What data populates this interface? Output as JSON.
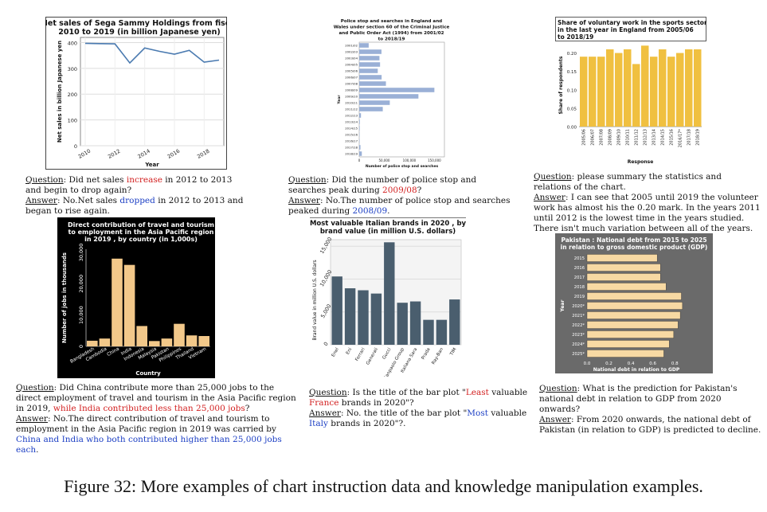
{
  "charts": [
    {
      "type": "line",
      "title": "Net sales of Sega Sammy Holdings from fiscal 2010 to 2019 (in billion Japanese yen)",
      "title_lines": [
        "Net sales of Sega Sammy Holdings from fiscal",
        "2010 to 2019 (in billion Japanese yen)"
      ],
      "xlabel": "Year",
      "ylabel": "Net sales in billion Japanese yen",
      "x": [
        2010,
        2011,
        2012,
        2013,
        2014,
        2015,
        2016,
        2017,
        2018,
        2019
      ],
      "values": [
        397,
        396,
        395,
        321,
        379,
        366,
        355,
        370,
        324,
        332
      ],
      "xticks": [
        "2010",
        "2012",
        "2014",
        "2016",
        "2018"
      ],
      "yticks": [
        "0",
        "100",
        "200",
        "300",
        "400"
      ],
      "ylim": [
        0,
        420
      ],
      "grid": true,
      "line_color": "#4a7ab0"
    },
    {
      "type": "bar",
      "orientation": "horizontal",
      "title": "Police stop and searches in England and Wales under section 60 of the Criminal Justice and Public Order Act (1994) from 2001/02 to 2018/19",
      "title_lines": [
        "Police stop and searches in England and",
        "Wales under section 60 of the Criminal Justice",
        "and Public Order Act (1994) from 2001/02",
        "to 2018/19"
      ],
      "xlabel": "Number of police stop and searches",
      "ylabel": "Year",
      "categories": [
        "2001/02",
        "2002/03",
        "2003/04",
        "2004/05",
        "2005/06",
        "2006/07",
        "2007/08",
        "2008/09",
        "2009/10",
        "2010/11",
        "2011/12",
        "2012/13",
        "2013/14",
        "2014/15",
        "2015/16",
        "2016/17",
        "2017/18",
        "2018/19"
      ],
      "values": [
        18900,
        44400,
        40400,
        41600,
        37000,
        44700,
        53300,
        149955,
        118112,
        61000,
        47000,
        3500,
        1200,
        1000,
        600,
        700,
        2500,
        5200
      ],
      "xticks": [
        "0",
        "50,000",
        "100,000",
        "150,000"
      ],
      "xlim": [
        0,
        170000
      ],
      "bar_color": "#9ab0d6"
    },
    {
      "type": "bar",
      "title": "Share of voluntary work in the sports sector in the last year in England from 2005/06 to 2018/19",
      "title_lines": [
        "Share of voluntary work in the sports sector",
        "in the last year in England from 2005/06",
        "to 2018/19"
      ],
      "xlabel": "Response",
      "ylabel": "Share of respondents",
      "categories": [
        "2005/06",
        "2006/07",
        "2007/08",
        "2008/09",
        "2009/10",
        "2010/11",
        "2011/12",
        "2012/13",
        "2013/14",
        "2014/15",
        "2015/16",
        "2016/17*",
        "2017/18",
        "2018/19"
      ],
      "values": [
        0.19,
        0.19,
        0.19,
        0.21,
        0.2,
        0.21,
        0.17,
        0.22,
        0.19,
        0.21,
        0.19,
        0.2,
        0.21,
        0.21
      ],
      "yticks": [
        "0.00",
        "0.05",
        "0.10",
        "0.15",
        "0.20"
      ],
      "ylim": [
        0,
        0.225
      ],
      "bar_color": "#f0c040"
    },
    {
      "type": "bar",
      "title": "Direct contribution of travel and tourism to employment in the Asia Pacific region in 2019 , by country (in 1,000s)",
      "title_lines": [
        "Direct contribution of travel and tourism",
        "to employment in the Asia Pacific region",
        "in 2019 , by country (in 1,000s)"
      ],
      "xlabel": "Country",
      "ylabel": "Number of jobs in thousands",
      "categories": [
        "Bangladesh",
        "Cambodia",
        "China",
        "India",
        "Indonesia",
        "Malaysia",
        "Pakistan",
        "Philippines",
        "Thailand",
        "Vietnam"
      ],
      "values": [
        1800,
        2500,
        28000,
        26000,
        6500,
        1700,
        2500,
        7200,
        3500,
        3300
      ],
      "yticks": [
        "0",
        "10,000",
        "20,000",
        "30,000"
      ],
      "ylim": [
        0,
        31000
      ],
      "bar_color": "#f2c88a",
      "background": "#000000"
    },
    {
      "type": "bar",
      "title": "Most valuable Italian brands in 2020 , by brand value (in million U.S. dollars)",
      "title_lines": [
        "Most valuable Italian brands in 2020 , by",
        "brand value (in million U.S. dollars)"
      ],
      "xlabel": "",
      "ylabel": "Brand value in million U.S. dollars",
      "categories": [
        "Enel",
        "Eni",
        "Ferrari",
        "Generali",
        "Gucci",
        "Intesa Sanpaolo Group",
        "Italiana Sara",
        "Prada",
        "Ray-Ban",
        "TIM"
      ],
      "values": [
        10400,
        8600,
        8300,
        7800,
        15600,
        6400,
        6600,
        3800,
        3800,
        6900
      ],
      "yticks": [
        "0",
        "5,000",
        "10,000",
        "15,000"
      ],
      "ylim": [
        0,
        16000
      ],
      "grid": true,
      "bar_color": "#4a5e6e"
    },
    {
      "type": "bar",
      "orientation": "horizontal",
      "title": "Pakistan : National debt from 2015 to 2025 in relation to gross domestic product (GDP)",
      "title_lines": [
        "Pakistan : National debt from 2015 to 2025",
        "in relation to gross domestic product (GDP)"
      ],
      "xlabel": "National debt in relation to GDP",
      "ylabel": "Year",
      "categories": [
        "2015",
        "2016",
        "2017",
        "2018",
        "2019",
        "2020*",
        "2021*",
        "2022*",
        "2023*",
        "2024*",
        "2025*"
      ],
      "values": [
        0.64,
        0.67,
        0.67,
        0.72,
        0.86,
        0.87,
        0.85,
        0.83,
        0.79,
        0.75,
        0.7
      ],
      "xticks": [
        "0.0",
        "0.2",
        "0.4",
        "0.6",
        "0.8"
      ],
      "xlim": [
        0,
        0.9
      ],
      "bar_color": "#f7d9a3",
      "background": "#6a6a6a"
    }
  ],
  "qa": [
    {
      "q_label": "Question",
      "q_parts": [
        {
          "t": ": Did net sales ",
          "c": ""
        },
        {
          "t": "increase",
          "c": "red"
        },
        {
          "t": " in 2012 to 2013 and begin to drop again?",
          "c": ""
        }
      ],
      "a_label": "Answer",
      "a_parts": [
        {
          "t": ": No.Net sales ",
          "c": ""
        },
        {
          "t": "dropped",
          "c": "blue"
        },
        {
          "t": " in 2012 to 2013 and began to rise again.",
          "c": ""
        }
      ]
    },
    {
      "q_label": "Question",
      "q_parts": [
        {
          "t": ": Did the number of police stop and searches peak during ",
          "c": ""
        },
        {
          "t": "2009/08",
          "c": "red"
        },
        {
          "t": "?",
          "c": ""
        }
      ],
      "a_label": "Answer",
      "a_parts": [
        {
          "t": ": No.The number of police stop and searches peaked during ",
          "c": ""
        },
        {
          "t": "2008/09",
          "c": "blue"
        },
        {
          "t": ".",
          "c": ""
        }
      ]
    },
    {
      "q_label": "Question",
      "q_parts": [
        {
          "t": ": please summary the statistics and relations of the chart.",
          "c": ""
        }
      ],
      "a_label": "Answer",
      "a_parts": [
        {
          "t": ": I can see that 2005 until 2019 the volunteer work has almost his the 0.20 mark. In the years 2011 until 2012 is the lowest time in the years studied. There isn't much variation between all of the years.",
          "c": ""
        }
      ]
    },
    {
      "q_label": "Question",
      "q_parts": [
        {
          "t": ": Did China contribute more than 25,000 jobs to the direct employment of travel and tourism in the Asia Pacific region in 2019, ",
          "c": ""
        },
        {
          "t": "while India contributed less than 25,000 jobs",
          "c": "red"
        },
        {
          "t": "?",
          "c": ""
        }
      ],
      "a_label": "Answer",
      "a_parts": [
        {
          "t": ": No.The direct contribution of travel and tourism to employment in the Asia Pacific region in 2019 was carried by ",
          "c": ""
        },
        {
          "t": "China and India who both contributed higher than 25,000 jobs each",
          "c": "blue"
        },
        {
          "t": ".",
          "c": ""
        }
      ]
    },
    {
      "q_label": "Question",
      "q_parts": [
        {
          "t": ": Is the title of the bar plot \"",
          "c": ""
        },
        {
          "t": "Least",
          "c": "red"
        },
        {
          "t": " valuable ",
          "c": ""
        },
        {
          "t": "France",
          "c": "red"
        },
        {
          "t": " brands in 2020\"?",
          "c": ""
        }
      ],
      "a_label": "Answer",
      "a_parts": [
        {
          "t": ": No. the title of the bar plot \"",
          "c": ""
        },
        {
          "t": "Most",
          "c": "blue"
        },
        {
          "t": " valuable ",
          "c": ""
        },
        {
          "t": "Italy",
          "c": "blue"
        },
        {
          "t": " brands in 2020\"?.",
          "c": ""
        }
      ]
    },
    {
      "q_label": "Question",
      "q_parts": [
        {
          "t": ": What is the prediction for Pakistan's national debt in relation to GDP from 2020 onwards?",
          "c": ""
        }
      ],
      "a_label": "Answer",
      "a_parts": [
        {
          "t": ": From 2020 onwards, the national debt of Pakistan (in relation to GDP) is predicted to decline.",
          "c": ""
        }
      ]
    }
  ],
  "caption": "Figure 32: More examples of chart instruction data and knowledge manipulation examples."
}
